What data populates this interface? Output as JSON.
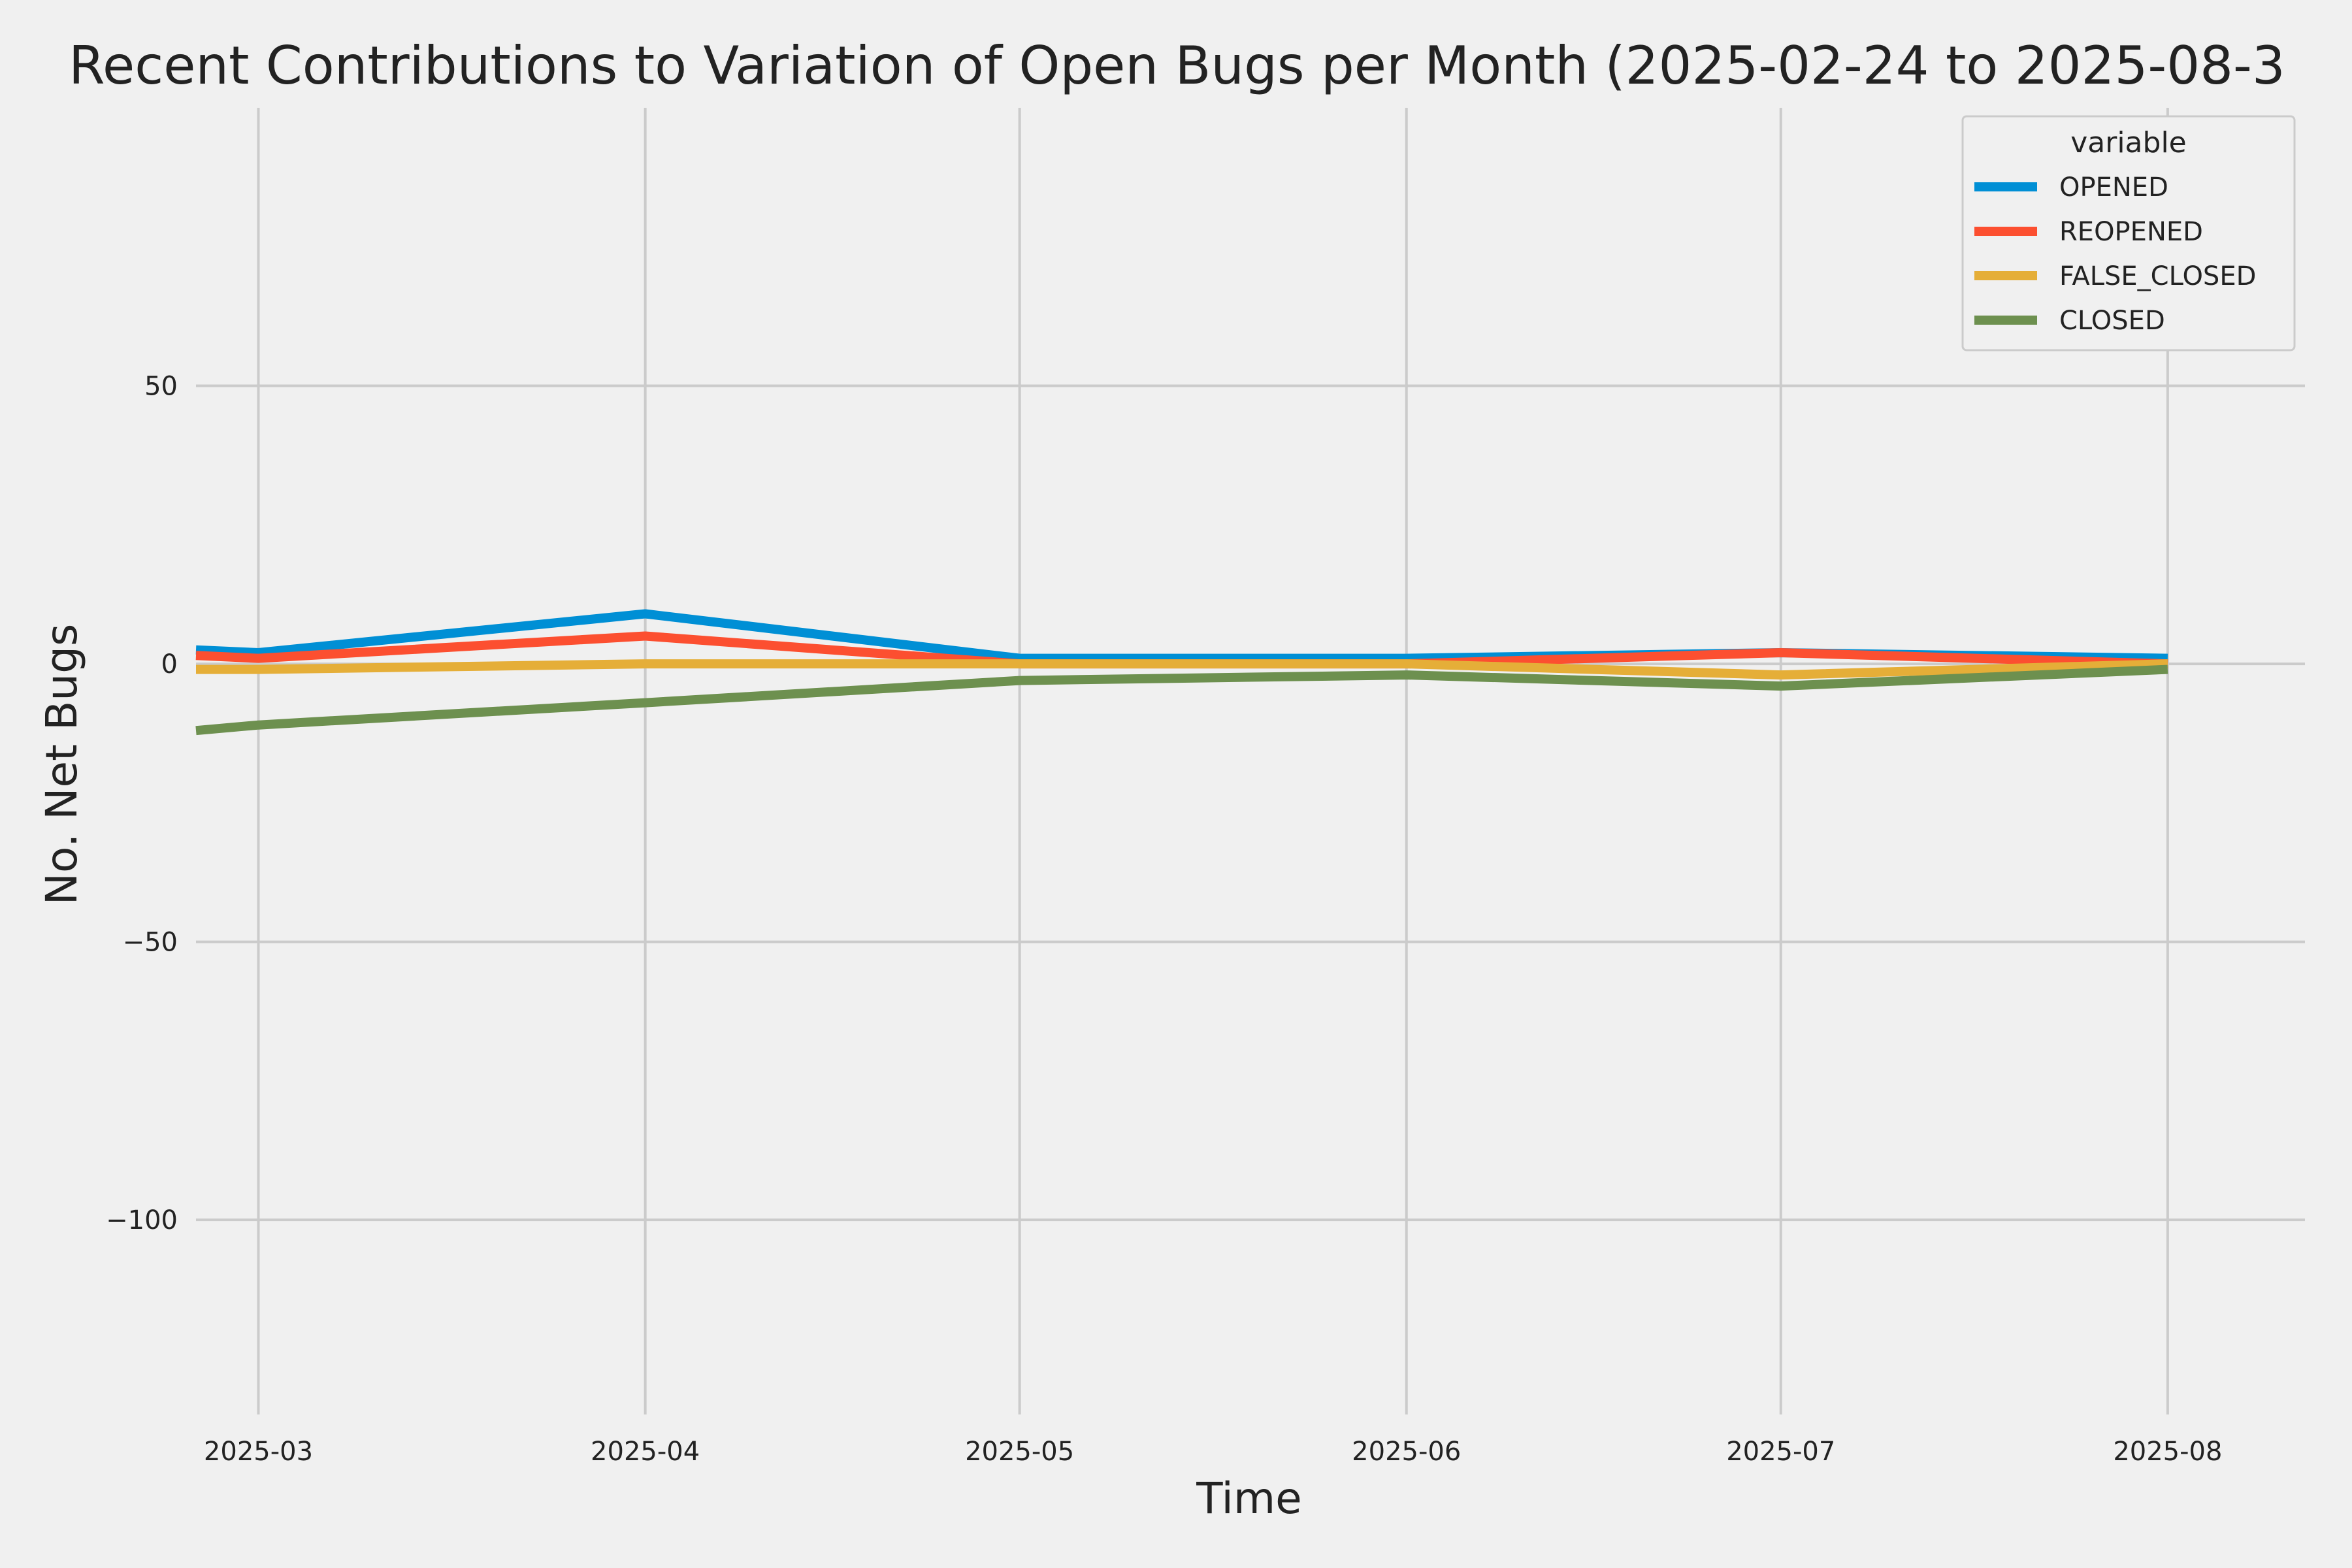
{
  "chart_data": {
    "type": "line",
    "title": "Recent Contributions to Variation of Open Bugs per Month (2025-02-24 to 2025-08-3",
    "xlabel": "Time",
    "ylabel": "No. Net Bugs",
    "ylim": [
      -135,
      100
    ],
    "y_ticks": [
      50,
      0,
      -50,
      -100
    ],
    "y_tick_labels": [
      "50",
      "0",
      "−50",
      "−100"
    ],
    "xlim": [
      "2025-02-24",
      "2025-08-12"
    ],
    "x_ticks": [
      "2025-03-01",
      "2025-04-01",
      "2025-05-01",
      "2025-06-01",
      "2025-07-01",
      "2025-08-01"
    ],
    "x_tick_labels": [
      "2025-03",
      "2025-04",
      "2025-05",
      "2025-06",
      "2025-07",
      "2025-08"
    ],
    "x": [
      "2025-02-24",
      "2025-03-01",
      "2025-04-01",
      "2025-05-01",
      "2025-06-01",
      "2025-07-01",
      "2025-08-01"
    ],
    "series": [
      {
        "name": "OPENED",
        "color": "#008fd5",
        "values": [
          2.5,
          2,
          9,
          1,
          1,
          2,
          1
        ]
      },
      {
        "name": "REOPENED",
        "color": "#fc4f30",
        "values": [
          1.5,
          1,
          5,
          0,
          0,
          2,
          0
        ]
      },
      {
        "name": "FALSE_CLOSED",
        "color": "#e5ae38",
        "values": [
          -1,
          -1,
          0,
          0,
          0,
          -2,
          0
        ]
      },
      {
        "name": "CLOSED",
        "color": "#6d904f",
        "values": [
          -12,
          -11,
          -7,
          -3,
          -2,
          -4,
          -1
        ]
      }
    ],
    "grid": true,
    "legend": {
      "title": "variable",
      "position": "top-right"
    }
  }
}
